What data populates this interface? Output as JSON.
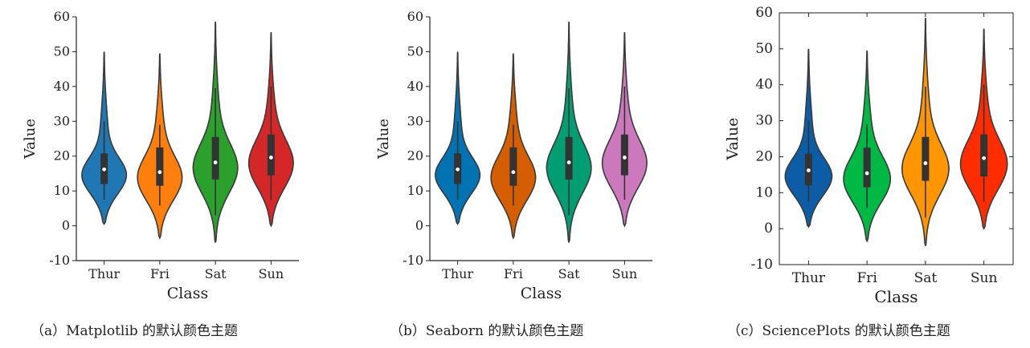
{
  "chart_data": [
    {
      "type": "violin",
      "caption": "（a）Matplotlib 的默认颜色主题",
      "xlabel": "Class",
      "ylabel": "Value",
      "ylim": [
        -10,
        60
      ],
      "yticks": [
        -10,
        0,
        10,
        20,
        30,
        40,
        50,
        60
      ],
      "categories": [
        "Thur",
        "Fri",
        "Sat",
        "Sun"
      ],
      "colors": [
        "#1f77b4",
        "#ff7f0e",
        "#2ca02c",
        "#d62728"
      ],
      "series": [
        {
          "name": "Thur",
          "min": 0.5,
          "q1": 12.0,
          "median": 16.2,
          "q3": 20.8,
          "max": 50.0,
          "whisker_low": 7.5,
          "whisker_high": 30.0
        },
        {
          "name": "Fri",
          "min": -3.5,
          "q1": 11.5,
          "median": 15.4,
          "q3": 22.5,
          "max": 49.5,
          "whisker_low": 5.8,
          "whisker_high": 29.0
        },
        {
          "name": "Sat",
          "min": -4.8,
          "q1": 13.3,
          "median": 18.2,
          "q3": 25.5,
          "max": 58.6,
          "whisker_low": 3.0,
          "whisker_high": 39.5
        },
        {
          "name": "Sun",
          "min": 0.0,
          "q1": 14.5,
          "median": 19.6,
          "q3": 26.2,
          "max": 55.6,
          "whisker_low": 7.5,
          "whisker_high": 40.0
        }
      ]
    },
    {
      "type": "violin",
      "caption": "（b）Seaborn 的默认颜色主题",
      "xlabel": "Class",
      "ylabel": "Value",
      "ylim": [
        -10,
        60
      ],
      "yticks": [
        -10,
        0,
        10,
        20,
        30,
        40,
        50,
        60
      ],
      "categories": [
        "Thur",
        "Fri",
        "Sat",
        "Sun"
      ],
      "colors": [
        "#0173b2",
        "#d55e00",
        "#029e73",
        "#cc78bc"
      ],
      "series": [
        {
          "name": "Thur",
          "min": 0.5,
          "q1": 12.0,
          "median": 16.2,
          "q3": 20.8,
          "max": 50.0,
          "whisker_low": 7.5,
          "whisker_high": 30.0
        },
        {
          "name": "Fri",
          "min": -3.5,
          "q1": 11.5,
          "median": 15.4,
          "q3": 22.5,
          "max": 49.5,
          "whisker_low": 5.8,
          "whisker_high": 29.0
        },
        {
          "name": "Sat",
          "min": -4.8,
          "q1": 13.3,
          "median": 18.2,
          "q3": 25.5,
          "max": 58.6,
          "whisker_low": 3.0,
          "whisker_high": 39.5
        },
        {
          "name": "Sun",
          "min": 0.0,
          "q1": 14.5,
          "median": 19.6,
          "q3": 26.2,
          "max": 55.6,
          "whisker_low": 7.5,
          "whisker_high": 40.0
        }
      ]
    },
    {
      "type": "violin",
      "caption": "（c）SciencePlots 的默认颜色主题",
      "xlabel": "Class",
      "ylabel": "Value",
      "ylim": [
        -10,
        60
      ],
      "yticks": [
        -10,
        0,
        10,
        20,
        30,
        40,
        50,
        60
      ],
      "categories": [
        "Thur",
        "Fri",
        "Sat",
        "Sun"
      ],
      "colors": [
        "#0c5da5",
        "#00b945",
        "#ff9500",
        "#ff2c00"
      ],
      "series": [
        {
          "name": "Thur",
          "min": 0.5,
          "q1": 12.0,
          "median": 16.2,
          "q3": 20.8,
          "max": 50.0,
          "whisker_low": 7.5,
          "whisker_high": 30.0
        },
        {
          "name": "Fri",
          "min": -3.5,
          "q1": 11.5,
          "median": 15.4,
          "q3": 22.5,
          "max": 49.5,
          "whisker_low": 5.8,
          "whisker_high": 29.0
        },
        {
          "name": "Sat",
          "min": -4.8,
          "q1": 13.3,
          "median": 18.2,
          "q3": 25.5,
          "max": 58.6,
          "whisker_low": 3.0,
          "whisker_high": 39.5
        },
        {
          "name": "Sun",
          "min": 0.0,
          "q1": 14.5,
          "median": 19.6,
          "q3": 26.2,
          "max": 55.6,
          "whisker_low": 7.5,
          "whisker_high": 40.0
        }
      ]
    }
  ]
}
